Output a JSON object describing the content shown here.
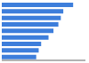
{
  "chart_data": {
    "type": "bar",
    "orientation": "horizontal",
    "categories": [
      null,
      null,
      null,
      null,
      null,
      null,
      null,
      null,
      null
    ],
    "values": [
      29,
      25,
      24,
      23,
      21,
      19,
      16,
      15,
      14
    ],
    "color": "#3D7EDB",
    "xlim": [
      0,
      34
    ],
    "tick_labels": false
  }
}
